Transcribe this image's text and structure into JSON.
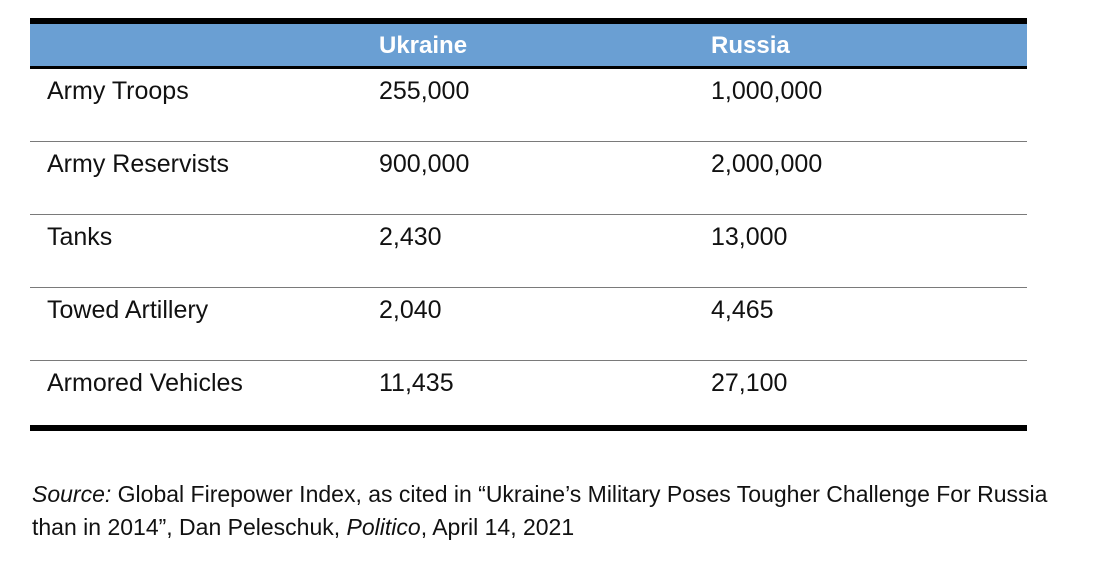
{
  "table": {
    "columns": [
      "",
      "Ukraine",
      "Russia"
    ],
    "rows": [
      {
        "label": "Army Troops",
        "ukraine": "255,000",
        "russia": "1,000,000"
      },
      {
        "label": "Army Reservists",
        "ukraine": "900,000",
        "russia": "2,000,000"
      },
      {
        "label": "Tanks",
        "ukraine": "2,430",
        "russia": "13,000"
      },
      {
        "label": "Towed Artillery",
        "ukraine": "2,040",
        "russia": "4,465"
      },
      {
        "label": "Armored Vehicles",
        "ukraine": "11,435",
        "russia": "27,100"
      }
    ],
    "header_color": "#6a9fd3"
  },
  "source": {
    "label": "Source:",
    "text_1": " Global Firepower Index, as cited in “Ukraine’s Military Poses Tougher Challenge For Russia than in 2014”, Dan Peleschuk, ",
    "publication": "Politico",
    "text_2": ", April 14, 2021"
  }
}
